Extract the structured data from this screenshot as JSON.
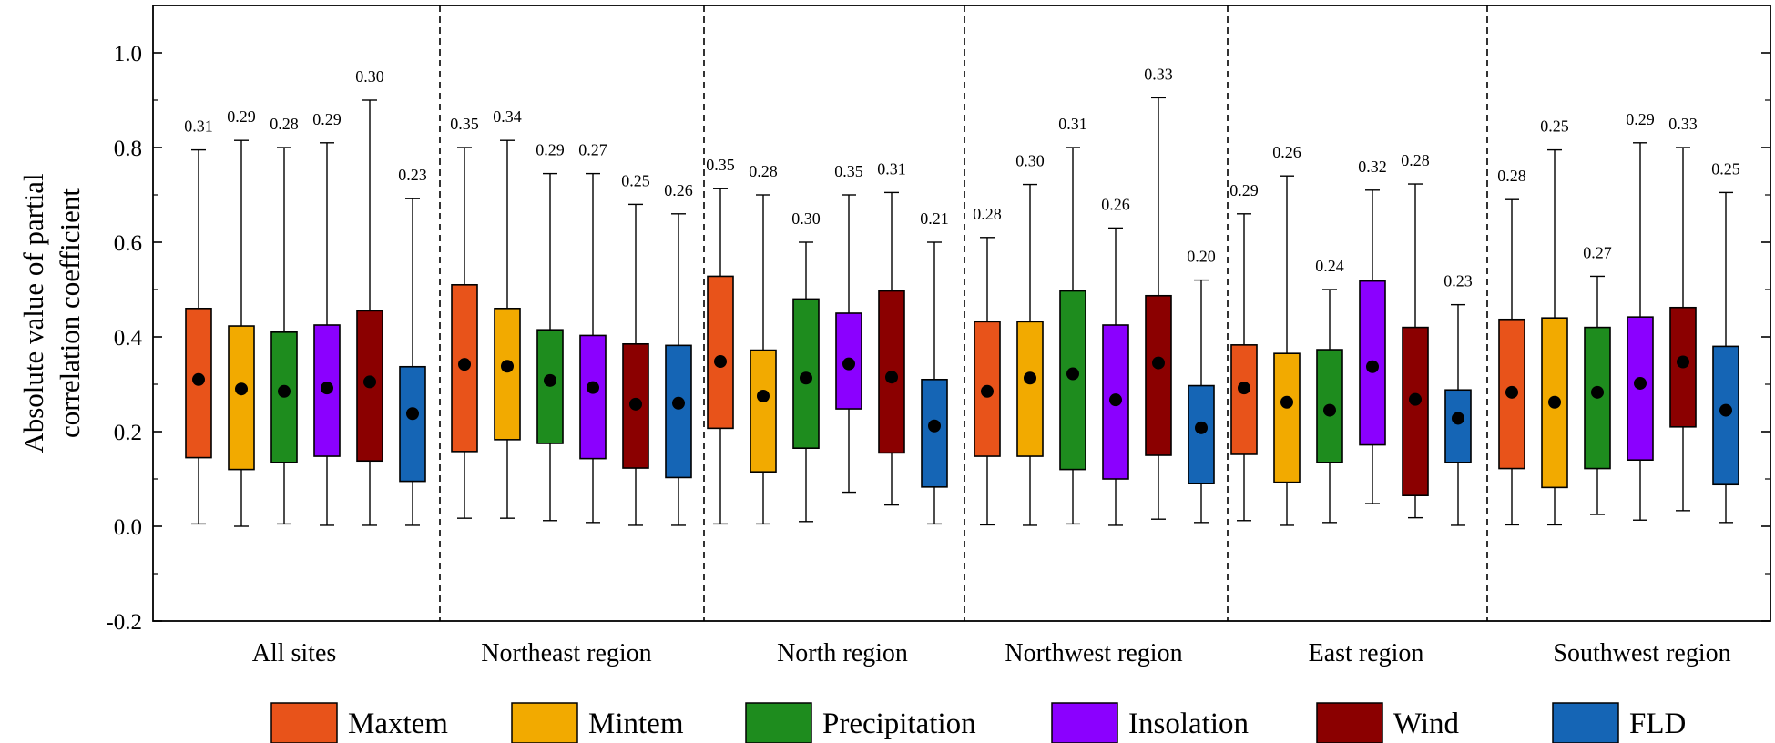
{
  "chart_data": {
    "type": "box",
    "ylabel": "Absolute value of partial correlation coefficient",
    "ylim": [
      -0.2,
      1.1
    ],
    "yticks": [
      -0.2,
      0.0,
      0.2,
      0.4,
      0.6,
      0.8,
      1.0
    ],
    "ytick_labels": [
      "-0.2",
      "0.0",
      "0.2",
      "0.4",
      "0.6",
      "0.8",
      "1.0"
    ],
    "legend_position": "bottom",
    "series": [
      {
        "name": "Maxtem",
        "color": "#E8531A"
      },
      {
        "name": "Mintem",
        "color": "#F2AA00"
      },
      {
        "name": "Precipitation",
        "color": "#1E8C1E"
      },
      {
        "name": "Insolation",
        "color": "#8B00FF"
      },
      {
        "name": "Wind",
        "color": "#8B0000"
      },
      {
        "name": "FLD",
        "color": "#1565B5"
      }
    ],
    "groups": [
      {
        "name": "All sites",
        "boxes": [
          {
            "series": "Maxtem",
            "min": 0.005,
            "q1": 0.145,
            "q3": 0.46,
            "max": 0.795,
            "mean": 0.31,
            "label": "0.31"
          },
          {
            "series": "Mintem",
            "min": 0.0,
            "q1": 0.12,
            "q3": 0.423,
            "max": 0.815,
            "mean": 0.29,
            "label": "0.29"
          },
          {
            "series": "Precipitation",
            "min": 0.005,
            "q1": 0.135,
            "q3": 0.41,
            "max": 0.8,
            "mean": 0.285,
            "label": "0.28"
          },
          {
            "series": "Insolation",
            "min": 0.002,
            "q1": 0.148,
            "q3": 0.425,
            "max": 0.81,
            "mean": 0.292,
            "label": "0.29"
          },
          {
            "series": "Wind",
            "min": 0.002,
            "q1": 0.138,
            "q3": 0.455,
            "max": 0.9,
            "mean": 0.305,
            "label": "0.30"
          },
          {
            "series": "FLD",
            "min": 0.002,
            "q1": 0.095,
            "q3": 0.337,
            "max": 0.692,
            "mean": 0.238,
            "label": "0.23"
          }
        ]
      },
      {
        "name": "Northeast region",
        "boxes": [
          {
            "series": "Maxtem",
            "min": 0.017,
            "q1": 0.158,
            "q3": 0.51,
            "max": 0.8,
            "mean": 0.342,
            "label": "0.35"
          },
          {
            "series": "Mintem",
            "min": 0.017,
            "q1": 0.183,
            "q3": 0.46,
            "max": 0.815,
            "mean": 0.338,
            "label": "0.34"
          },
          {
            "series": "Precipitation",
            "min": 0.012,
            "q1": 0.175,
            "q3": 0.415,
            "max": 0.745,
            "mean": 0.308,
            "label": "0.29"
          },
          {
            "series": "Insolation",
            "min": 0.008,
            "q1": 0.143,
            "q3": 0.403,
            "max": 0.745,
            "mean": 0.293,
            "label": "0.27"
          },
          {
            "series": "Wind",
            "min": 0.002,
            "q1": 0.123,
            "q3": 0.385,
            "max": 0.68,
            "mean": 0.258,
            "label": "0.25"
          },
          {
            "series": "FLD",
            "min": 0.002,
            "q1": 0.103,
            "q3": 0.382,
            "max": 0.66,
            "mean": 0.26,
            "label": "0.26"
          }
        ]
      },
      {
        "name": "North region",
        "boxes": [
          {
            "series": "Maxtem",
            "min": 0.005,
            "q1": 0.207,
            "q3": 0.528,
            "max": 0.713,
            "mean": 0.348,
            "label": "0.35"
          },
          {
            "series": "Mintem",
            "min": 0.005,
            "q1": 0.115,
            "q3": 0.372,
            "max": 0.7,
            "mean": 0.275,
            "label": "0.28"
          },
          {
            "series": "Precipitation",
            "min": 0.01,
            "q1": 0.165,
            "q3": 0.48,
            "max": 0.6,
            "mean": 0.313,
            "label": "0.30"
          },
          {
            "series": "Insolation",
            "min": 0.072,
            "q1": 0.248,
            "q3": 0.45,
            "max": 0.7,
            "mean": 0.343,
            "label": "0.35"
          },
          {
            "series": "Wind",
            "min": 0.045,
            "q1": 0.155,
            "q3": 0.497,
            "max": 0.705,
            "mean": 0.315,
            "label": "0.31"
          },
          {
            "series": "FLD",
            "min": 0.005,
            "q1": 0.083,
            "q3": 0.31,
            "max": 0.6,
            "mean": 0.212,
            "label": "0.21"
          }
        ]
      },
      {
        "name": "Northwest region",
        "boxes": [
          {
            "series": "Maxtem",
            "min": 0.003,
            "q1": 0.148,
            "q3": 0.432,
            "max": 0.61,
            "mean": 0.285,
            "label": "0.28"
          },
          {
            "series": "Mintem",
            "min": 0.002,
            "q1": 0.148,
            "q3": 0.432,
            "max": 0.722,
            "mean": 0.313,
            "label": "0.30"
          },
          {
            "series": "Precipitation",
            "min": 0.005,
            "q1": 0.12,
            "q3": 0.497,
            "max": 0.8,
            "mean": 0.322,
            "label": "0.31"
          },
          {
            "series": "Insolation",
            "min": 0.002,
            "q1": 0.1,
            "q3": 0.425,
            "max": 0.63,
            "mean": 0.267,
            "label": "0.26"
          },
          {
            "series": "Wind",
            "min": 0.015,
            "q1": 0.15,
            "q3": 0.487,
            "max": 0.905,
            "mean": 0.345,
            "label": "0.33"
          },
          {
            "series": "FLD",
            "min": 0.008,
            "q1": 0.09,
            "q3": 0.297,
            "max": 0.52,
            "mean": 0.208,
            "label": "0.20"
          }
        ]
      },
      {
        "name": "East region",
        "boxes": [
          {
            "series": "Maxtem",
            "min": 0.012,
            "q1": 0.152,
            "q3": 0.383,
            "max": 0.66,
            "mean": 0.292,
            "label": "0.29"
          },
          {
            "series": "Mintem",
            "min": 0.002,
            "q1": 0.093,
            "q3": 0.365,
            "max": 0.74,
            "mean": 0.262,
            "label": "0.26"
          },
          {
            "series": "Precipitation",
            "min": 0.008,
            "q1": 0.135,
            "q3": 0.373,
            "max": 0.5,
            "mean": 0.245,
            "label": "0.24"
          },
          {
            "series": "Insolation",
            "min": 0.048,
            "q1": 0.172,
            "q3": 0.518,
            "max": 0.71,
            "mean": 0.337,
            "label": "0.32"
          },
          {
            "series": "Wind",
            "min": 0.018,
            "q1": 0.065,
            "q3": 0.42,
            "max": 0.723,
            "mean": 0.268,
            "label": "0.28"
          },
          {
            "series": "FLD",
            "min": 0.002,
            "q1": 0.135,
            "q3": 0.288,
            "max": 0.468,
            "mean": 0.228,
            "label": "0.23"
          }
        ]
      },
      {
        "name": "Southwest region",
        "boxes": [
          {
            "series": "Maxtem",
            "min": 0.003,
            "q1": 0.122,
            "q3": 0.437,
            "max": 0.69,
            "mean": 0.283,
            "label": "0.28"
          },
          {
            "series": "Mintem",
            "min": 0.003,
            "q1": 0.082,
            "q3": 0.44,
            "max": 0.795,
            "mean": 0.262,
            "label": "0.25"
          },
          {
            "series": "Precipitation",
            "min": 0.025,
            "q1": 0.122,
            "q3": 0.42,
            "max": 0.528,
            "mean": 0.283,
            "label": "0.27"
          },
          {
            "series": "Insolation",
            "min": 0.013,
            "q1": 0.14,
            "q3": 0.442,
            "max": 0.81,
            "mean": 0.302,
            "label": "0.29"
          },
          {
            "series": "Wind",
            "min": 0.033,
            "q1": 0.21,
            "q3": 0.462,
            "max": 0.8,
            "mean": 0.347,
            "label": "0.33"
          },
          {
            "series": "FLD",
            "min": 0.008,
            "q1": 0.088,
            "q3": 0.38,
            "max": 0.705,
            "mean": 0.245,
            "label": "0.25"
          }
        ]
      }
    ]
  }
}
